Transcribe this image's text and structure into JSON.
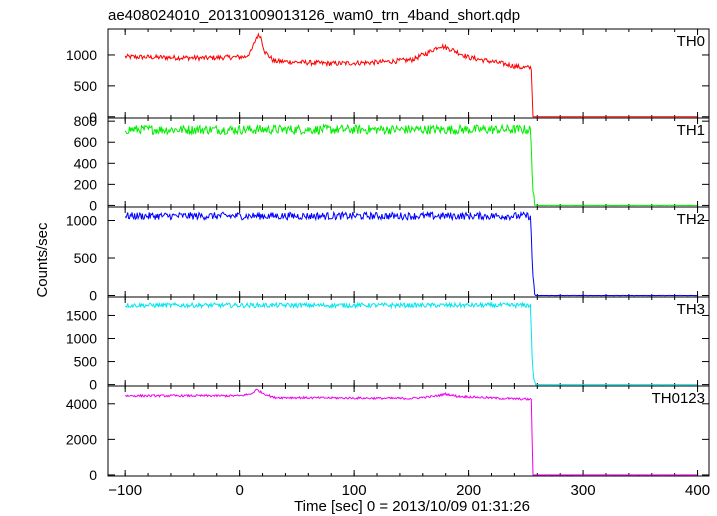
{
  "chart_data": {
    "type": "line",
    "title": "ae408024010_20131009013126_wam0_trn_4band_short.qdp",
    "xlabel": "Time [sec] 0 = 2013/10/09 01:31:26",
    "ylabel": "Counts/sec",
    "xlim": [
      -115,
      410
    ],
    "x_ticks": [
      -100,
      0,
      100,
      200,
      300,
      400
    ],
    "x_tick_labels": [
      "−100",
      "0",
      "100",
      "200",
      "300",
      "400"
    ],
    "panels": [
      {
        "name": "TH0",
        "color": "#ff0000",
        "ylim": [
          -20,
          1420
        ],
        "y_ticks": [
          0,
          500,
          1000
        ],
        "y_tick_labels": [
          "0",
          "500",
          "1000"
        ],
        "segments": [
          [
            -100,
            970
          ],
          [
            -30,
            950
          ],
          [
            5,
            970
          ],
          [
            10,
            1050
          ],
          [
            15,
            1300
          ],
          [
            18,
            1320
          ],
          [
            22,
            1050
          ],
          [
            30,
            900
          ],
          [
            80,
            860
          ],
          [
            120,
            880
          ],
          [
            150,
            920
          ],
          [
            165,
            1040
          ],
          [
            175,
            1150
          ],
          [
            185,
            1090
          ],
          [
            200,
            960
          ],
          [
            230,
            860
          ],
          [
            245,
            800
          ],
          [
            255,
            790
          ],
          [
            256,
            0
          ],
          [
            400,
            0
          ]
        ],
        "noise": 40
      },
      {
        "name": "TH1",
        "color": "#00ee00",
        "ylim": [
          -15,
          830
        ],
        "y_ticks": [
          0,
          200,
          400,
          600,
          800
        ],
        "y_tick_labels": [
          "0",
          "200",
          "400",
          "600",
          "800"
        ],
        "segments": [
          [
            -100,
            720
          ],
          [
            254,
            720
          ],
          [
            256,
            200
          ],
          [
            258,
            0
          ],
          [
            400,
            0
          ]
        ],
        "noise": 45
      },
      {
        "name": "TH2",
        "color": "#0000ff",
        "ylim": [
          -20,
          1180
        ],
        "y_ticks": [
          0,
          500,
          1000
        ],
        "y_tick_labels": [
          "0",
          "500",
          "1000"
        ],
        "segments": [
          [
            -100,
            1060
          ],
          [
            254,
            1060
          ],
          [
            256,
            300
          ],
          [
            258,
            0
          ],
          [
            400,
            0
          ]
        ],
        "noise": 50
      },
      {
        "name": "TH3",
        "color": "#00e5ee",
        "ylim": [
          -30,
          1900
        ],
        "y_ticks": [
          0,
          500,
          1000,
          1500
        ],
        "y_tick_labels": [
          "0",
          "500",
          "1000",
          "1500"
        ],
        "segments": [
          [
            -100,
            1720
          ],
          [
            254,
            1720
          ],
          [
            256,
            300
          ],
          [
            258,
            0
          ],
          [
            400,
            0
          ]
        ],
        "noise": 50
      },
      {
        "name": "TH0123",
        "color": "#ee00ee",
        "ylim": [
          -60,
          5000
        ],
        "y_ticks": [
          0,
          2000,
          4000
        ],
        "y_tick_labels": [
          "0",
          "2000",
          "4000"
        ],
        "segments": [
          [
            -100,
            4450
          ],
          [
            0,
            4450
          ],
          [
            10,
            4550
          ],
          [
            15,
            4800
          ],
          [
            20,
            4600
          ],
          [
            30,
            4350
          ],
          [
            150,
            4300
          ],
          [
            170,
            4420
          ],
          [
            180,
            4550
          ],
          [
            190,
            4420
          ],
          [
            230,
            4300
          ],
          [
            255,
            4250
          ],
          [
            256,
            0
          ],
          [
            400,
            0
          ]
        ],
        "noise": 60
      }
    ]
  }
}
